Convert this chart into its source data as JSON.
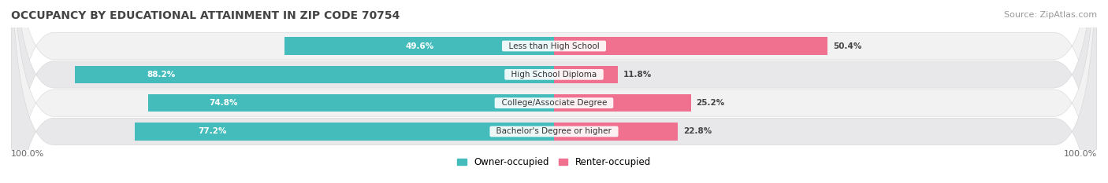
{
  "title": "OCCUPANCY BY EDUCATIONAL ATTAINMENT IN ZIP CODE 70754",
  "source": "Source: ZipAtlas.com",
  "categories": [
    "Less than High School",
    "High School Diploma",
    "College/Associate Degree",
    "Bachelor's Degree or higher"
  ],
  "owner_pct": [
    49.6,
    88.2,
    74.8,
    77.2
  ],
  "renter_pct": [
    50.4,
    11.8,
    25.2,
    22.8
  ],
  "owner_color": "#45BCBC",
  "renter_color": "#F07090",
  "row_bg_color_odd": "#F2F2F2",
  "row_bg_color_even": "#E8E8EA",
  "title_fontsize": 10,
  "source_fontsize": 8,
  "label_fontsize": 7.5,
  "cat_fontsize": 7.5,
  "axis_label_fontsize": 8,
  "legend_fontsize": 8.5,
  "x_left_label": "100.0%",
  "x_right_label": "100.0%"
}
